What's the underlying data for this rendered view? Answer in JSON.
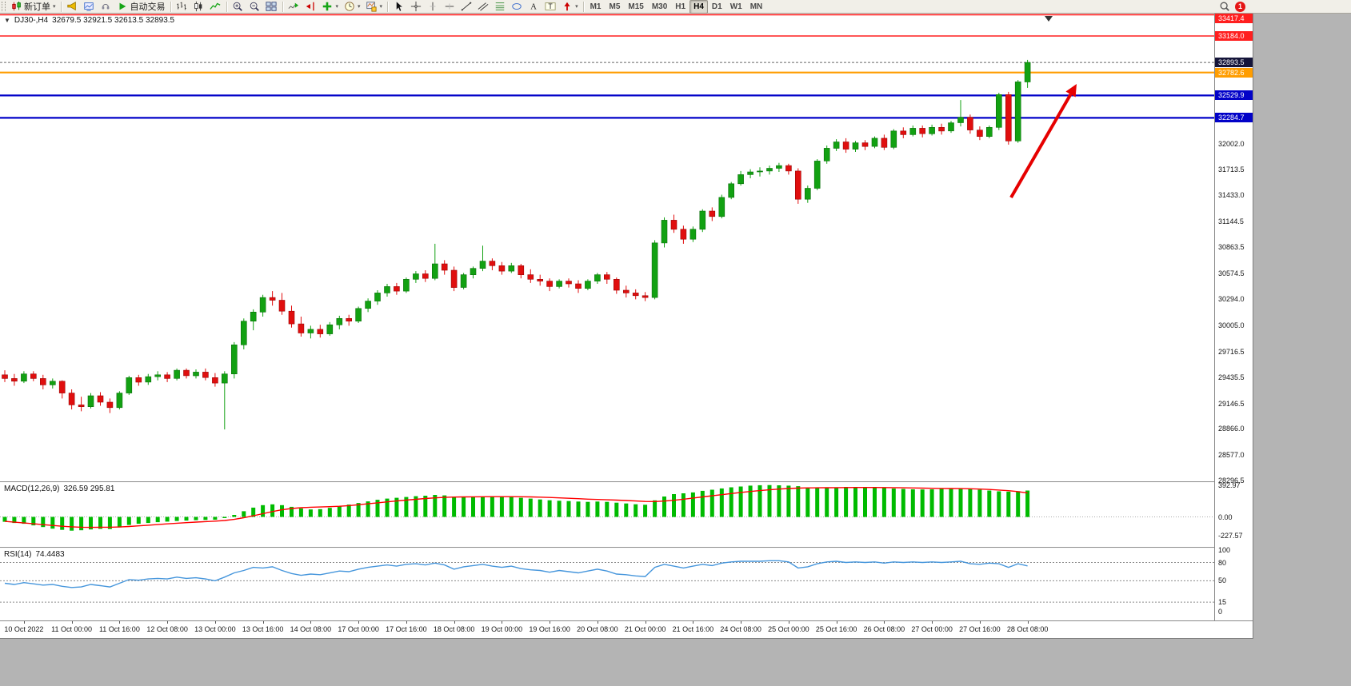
{
  "toolbar": {
    "groups": [
      {
        "name": "trade",
        "items": [
          {
            "name": "new-order-button",
            "icon": "new-order-icon",
            "label": "新订单",
            "dropdown": true
          }
        ]
      },
      {
        "name": "services",
        "items": [
          {
            "name": "alerts-button",
            "icon": "alert-horn-icon"
          },
          {
            "name": "news-button",
            "icon": "profile-chart-icon"
          },
          {
            "name": "community-button",
            "icon": "headset-icon"
          },
          {
            "name": "autotrading-button",
            "icon": "autotrading-play-icon",
            "label": "自动交易"
          }
        ]
      },
      {
        "name": "chart-types",
        "items": [
          {
            "name": "bar-chart-button",
            "icon": "bar-chart-icon"
          },
          {
            "name": "candlestick-button",
            "icon": "candlestick-icon"
          },
          {
            "name": "line-chart-button",
            "icon": "line-chart-icon"
          }
        ]
      },
      {
        "name": "zoom",
        "items": [
          {
            "name": "zoom-in-button",
            "icon": "zoom-in-icon"
          },
          {
            "name": "zoom-out-button",
            "icon": "zoom-out-icon"
          },
          {
            "name": "tile-windows-button",
            "icon": "tile-windows-icon"
          }
        ]
      },
      {
        "name": "chart-tools",
        "items": [
          {
            "name": "auto-scroll-button",
            "icon": "auto-scroll-icon"
          },
          {
            "name": "chart-shift-button",
            "icon": "chart-shift-icon"
          },
          {
            "name": "indicators-button",
            "icon": "indicators-icon",
            "dropdown": true
          },
          {
            "name": "periods-button",
            "icon": "periods-icon",
            "dropdown": true
          },
          {
            "name": "templates-button",
            "icon": "templates-icon",
            "dropdown": true
          }
        ]
      },
      {
        "name": "drawing",
        "items": [
          {
            "name": "cursor-button",
            "icon": "cursor-icon"
          },
          {
            "name": "crosshair-button",
            "icon": "crosshair-icon"
          },
          {
            "name": "vertical-line-button",
            "icon": "vertical-line-icon"
          },
          {
            "name": "horizontal-line-button",
            "icon": "horizontal-line-icon"
          },
          {
            "name": "trendline-button",
            "icon": "trendline-icon"
          },
          {
            "name": "channel-button",
            "icon": "channel-icon"
          },
          {
            "name": "fibonacci-button",
            "icon": "fibonacci-icon"
          },
          {
            "name": "shapes-button",
            "icon": "shapes-icon"
          },
          {
            "name": "text-button",
            "icon": "text-icon"
          },
          {
            "name": "text-label-button",
            "icon": "text-label-icon"
          },
          {
            "name": "arrows-button",
            "icon": "arrows-icon",
            "dropdown": true
          }
        ]
      }
    ],
    "timeframes": {
      "items": [
        "M1",
        "M5",
        "M15",
        "M30",
        "H1",
        "H4",
        "D1",
        "W1",
        "MN"
      ],
      "active": "H4"
    },
    "right": {
      "notification_count": "1"
    }
  },
  "chart": {
    "title": {
      "dropdown_glyph": "▼",
      "symbol_period": "DJ30-,H4",
      "ohlc": "32679.5 32921.5 32613.5 32893.5"
    }
  },
  "chart_data": {
    "type": "candlestick",
    "symbol": "DJ30-",
    "period": "H4",
    "current_ohlc": {
      "open": 32679.5,
      "high": 32921.5,
      "low": 32613.5,
      "close": 32893.5
    },
    "price_range": [
      28290,
      33430
    ],
    "colors": {
      "up": "#12a112",
      "up_edge": "#0a700a",
      "down": "#e00e0e",
      "down_edge": "#9c0606",
      "macd_hist": "#00bb00",
      "macd_signal": "#ff0000",
      "rsi_line": "#4696dc",
      "current_price_bg": "#15153a",
      "arrow": "#e60000"
    },
    "hlines": [
      {
        "price": 33417.4,
        "label": "33417.4",
        "color": "#ff1f1f",
        "width": 1.6
      },
      {
        "price": 33184.0,
        "label": "33184.0",
        "color": "#ff1f1f",
        "width": 1.6
      },
      {
        "price": 32782.6,
        "label": "32782.6",
        "color": "#ff9d00",
        "width": 2.2
      },
      {
        "price": 32529.9,
        "label": "32529.9",
        "color": "#0202c8",
        "width": 2.2
      },
      {
        "price": 32284.7,
        "label": "32284.7",
        "color": "#0202c8",
        "width": 2.2
      }
    ],
    "current_price": {
      "value": 32893.5,
      "label": "32893.5"
    },
    "price_ticks": [
      "32002.0",
      "31713.5",
      "31433.0",
      "31144.5",
      "30863.5",
      "30574.5",
      "30294.0",
      "30005.0",
      "29716.5",
      "29435.5",
      "29146.5",
      "28866.0",
      "28577.0",
      "28296.5"
    ],
    "time_labels": [
      "10 Oct 2022",
      "11 Oct 00:00",
      "11 Oct 16:00",
      "12 Oct 08:00",
      "13 Oct 00:00",
      "13 Oct 16:00",
      "14 Oct 08:00",
      "17 Oct 00:00",
      "17 Oct 16:00",
      "18 Oct 08:00",
      "19 Oct 00:00",
      "19 Oct 16:00",
      "20 Oct 08:00",
      "21 Oct 00:00",
      "21 Oct 16:00",
      "24 Oct 08:00",
      "25 Oct 00:00",
      "25 Oct 16:00",
      "26 Oct 08:00",
      "27 Oct 00:00",
      "27 Oct 16:00",
      "28 Oct 08:00"
    ],
    "candles": [
      [
        29460,
        29510,
        29380,
        29420
      ],
      [
        29420,
        29470,
        29340,
        29390
      ],
      [
        29390,
        29500,
        29370,
        29470
      ],
      [
        29470,
        29500,
        29390,
        29420
      ],
      [
        29420,
        29460,
        29300,
        29350
      ],
      [
        29350,
        29420,
        29310,
        29390
      ],
      [
        29390,
        29400,
        29200,
        29260
      ],
      [
        29260,
        29300,
        29080,
        29130
      ],
      [
        29130,
        29220,
        29060,
        29110
      ],
      [
        29110,
        29260,
        29090,
        29230
      ],
      [
        29230,
        29270,
        29120,
        29160
      ],
      [
        29160,
        29200,
        29040,
        29100
      ],
      [
        29100,
        29280,
        29080,
        29260
      ],
      [
        29260,
        29450,
        29240,
        29430
      ],
      [
        29430,
        29460,
        29340,
        29380
      ],
      [
        29380,
        29470,
        29350,
        29440
      ],
      [
        29440,
        29500,
        29400,
        29460
      ],
      [
        29460,
        29490,
        29380,
        29420
      ],
      [
        29420,
        29530,
        29400,
        29510
      ],
      [
        29510,
        29530,
        29420,
        29450
      ],
      [
        29450,
        29520,
        29420,
        29490
      ],
      [
        29490,
        29530,
        29400,
        29430
      ],
      [
        29430,
        29480,
        29330,
        29370
      ],
      [
        29370,
        29500,
        28860,
        29470
      ],
      [
        29470,
        29820,
        29420,
        29790
      ],
      [
        29790,
        30080,
        29740,
        30050
      ],
      [
        30050,
        30180,
        29950,
        30150
      ],
      [
        30150,
        30340,
        30100,
        30310
      ],
      [
        30310,
        30380,
        30220,
        30280
      ],
      [
        30280,
        30360,
        30120,
        30160
      ],
      [
        30160,
        30220,
        29980,
        30020
      ],
      [
        30020,
        30100,
        29880,
        29920
      ],
      [
        29920,
        30000,
        29860,
        29960
      ],
      [
        29960,
        30010,
        29870,
        29910
      ],
      [
        29910,
        30040,
        29890,
        30010
      ],
      [
        30010,
        30110,
        29960,
        30080
      ],
      [
        30080,
        30120,
        30000,
        30050
      ],
      [
        30050,
        30210,
        30030,
        30190
      ],
      [
        30190,
        30300,
        30150,
        30270
      ],
      [
        30270,
        30390,
        30230,
        30360
      ],
      [
        30360,
        30460,
        30320,
        30430
      ],
      [
        30430,
        30470,
        30340,
        30380
      ],
      [
        30380,
        30530,
        30360,
        30510
      ],
      [
        30510,
        30600,
        30470,
        30570
      ],
      [
        30570,
        30610,
        30480,
        30520
      ],
      [
        30520,
        30900,
        30500,
        30680
      ],
      [
        30680,
        30720,
        30560,
        30610
      ],
      [
        30610,
        30650,
        30380,
        30420
      ],
      [
        30420,
        30580,
        30400,
        30560
      ],
      [
        30560,
        30650,
        30520,
        30630
      ],
      [
        30630,
        30880,
        30600,
        30710
      ],
      [
        30710,
        30740,
        30610,
        30660
      ],
      [
        30660,
        30700,
        30560,
        30600
      ],
      [
        30600,
        30690,
        30580,
        30660
      ],
      [
        30660,
        30680,
        30520,
        30560
      ],
      [
        30560,
        30620,
        30470,
        30510
      ],
      [
        30510,
        30560,
        30440,
        30490
      ],
      [
        30490,
        30520,
        30380,
        30430
      ],
      [
        30430,
        30510,
        30410,
        30490
      ],
      [
        30490,
        30520,
        30420,
        30460
      ],
      [
        30460,
        30500,
        30360,
        30410
      ],
      [
        30410,
        30510,
        30390,
        30490
      ],
      [
        30490,
        30580,
        30460,
        30560
      ],
      [
        30560,
        30590,
        30460,
        30510
      ],
      [
        30510,
        30530,
        30350,
        30390
      ],
      [
        30390,
        30440,
        30310,
        30360
      ],
      [
        30360,
        30400,
        30290,
        30330
      ],
      [
        30330,
        30370,
        30270,
        30310
      ],
      [
        30310,
        30940,
        30290,
        30910
      ],
      [
        30910,
        31190,
        30860,
        31160
      ],
      [
        31160,
        31220,
        31020,
        31060
      ],
      [
        31060,
        31100,
        30900,
        30950
      ],
      [
        30950,
        31090,
        30920,
        31060
      ],
      [
        31060,
        31280,
        31030,
        31260
      ],
      [
        31260,
        31300,
        31150,
        31200
      ],
      [
        31200,
        31440,
        31180,
        31410
      ],
      [
        31410,
        31580,
        31390,
        31560
      ],
      [
        31560,
        31700,
        31540,
        31660
      ],
      [
        31660,
        31720,
        31620,
        31690
      ],
      [
        31690,
        31740,
        31640,
        31700
      ],
      [
        31700,
        31760,
        31660,
        31730
      ],
      [
        31730,
        31790,
        31690,
        31760
      ],
      [
        31760,
        31780,
        31660,
        31700
      ],
      [
        31700,
        31730,
        31340,
        31390
      ],
      [
        31390,
        31540,
        31350,
        31510
      ],
      [
        31510,
        31830,
        31490,
        31810
      ],
      [
        31810,
        31980,
        31780,
        31950
      ],
      [
        31950,
        32050,
        31920,
        32020
      ],
      [
        32020,
        32060,
        31900,
        31940
      ],
      [
        31940,
        32030,
        31910,
        32010
      ],
      [
        32010,
        32040,
        31930,
        31970
      ],
      [
        31970,
        32080,
        31950,
        32060
      ],
      [
        32060,
        32100,
        31930,
        31960
      ],
      [
        31960,
        32160,
        31940,
        32140
      ],
      [
        32140,
        32180,
        32060,
        32100
      ],
      [
        32100,
        32200,
        32080,
        32170
      ],
      [
        32170,
        32200,
        32070,
        32110
      ],
      [
        32110,
        32210,
        32090,
        32180
      ],
      [
        32180,
        32220,
        32100,
        32140
      ],
      [
        32140,
        32250,
        32120,
        32230
      ],
      [
        32230,
        32480,
        32190,
        32290
      ],
      [
        32290,
        32320,
        32110,
        32150
      ],
      [
        32150,
        32190,
        32040,
        32080
      ],
      [
        32080,
        32200,
        32060,
        32180
      ],
      [
        32180,
        32560,
        32150,
        32540
      ],
      [
        32540,
        32570,
        31990,
        32030
      ],
      [
        32030,
        32700,
        32010,
        32679.5
      ],
      [
        32679.5,
        32921.5,
        32613.5,
        32893.5
      ]
    ],
    "macd": {
      "label": "MACD(12,26,9)",
      "values_text": "326.59 295.81",
      "main_value": 326.59,
      "signal_value": 295.81,
      "scale": [
        "392.97",
        "0.00",
        "-227.57"
      ],
      "range": [
        420,
        -370
      ],
      "histogram": [
        -60,
        -75,
        -85,
        -105,
        -125,
        -145,
        -160,
        -170,
        -165,
        -155,
        -148,
        -150,
        -130,
        -100,
        -85,
        -75,
        -65,
        -58,
        -50,
        -45,
        -40,
        -38,
        -35,
        -15,
        25,
        70,
        115,
        145,
        155,
        145,
        125,
        105,
        92,
        96,
        112,
        132,
        152,
        172,
        192,
        212,
        226,
        236,
        246,
        256,
        262,
        272,
        266,
        250,
        242,
        246,
        252,
        256,
        250,
        246,
        236,
        226,
        216,
        206,
        200,
        196,
        190,
        186,
        190,
        186,
        176,
        166,
        156,
        150,
        205,
        252,
        282,
        292,
        302,
        322,
        336,
        352,
        366,
        376,
        386,
        391,
        393,
        390,
        386,
        380,
        362,
        356,
        362,
        366,
        371,
        369,
        366,
        361,
        356,
        351,
        346,
        341,
        339,
        341,
        346,
        351,
        356,
        346,
        336,
        326,
        316,
        312,
        318,
        326.59
      ],
      "signal": [
        -55,
        -65,
        -75,
        -85,
        -95,
        -105,
        -115,
        -122,
        -127,
        -129,
        -128,
        -127,
        -124,
        -118,
        -110,
        -102,
        -94,
        -86,
        -78,
        -71,
        -64,
        -58,
        -52,
        -44,
        -30,
        -10,
        14,
        40,
        66,
        88,
        104,
        114,
        120,
        123,
        127,
        132,
        140,
        150,
        162,
        174,
        186,
        197,
        208,
        218,
        227,
        235,
        241,
        245,
        247,
        248,
        249,
        250,
        250,
        250,
        249,
        247,
        244,
        240,
        235,
        230,
        225,
        220,
        216,
        212,
        208,
        203,
        197,
        191,
        190,
        196,
        206,
        219,
        233,
        247,
        261,
        275,
        289,
        302,
        314,
        325,
        335,
        344,
        351,
        356,
        359,
        360,
        361,
        362,
        363,
        364,
        364,
        364,
        363,
        362,
        360,
        358,
        356,
        354,
        352,
        351,
        350,
        348,
        344,
        339,
        332,
        324,
        312,
        295.81
      ]
    },
    "rsi": {
      "label": "RSI(14)",
      "value_text": "74.4483",
      "last_value": 74.4483,
      "scale": [
        "100",
        "80",
        "50",
        "15",
        "0"
      ],
      "levels_dashed": [
        80,
        50,
        15
      ],
      "range": [
        103,
        -15
      ],
      "series": [
        46,
        44,
        47,
        45,
        43,
        44,
        41,
        39,
        40,
        44,
        42,
        40,
        46,
        52,
        51,
        53,
        54,
        53,
        56,
        54,
        55,
        53,
        50,
        56,
        63,
        67,
        72,
        71,
        73,
        67,
        62,
        59,
        61,
        60,
        63,
        66,
        65,
        69,
        72,
        74,
        76,
        74,
        77,
        78,
        76,
        79,
        76,
        69,
        73,
        75,
        77,
        74,
        72,
        74,
        70,
        68,
        67,
        64,
        67,
        65,
        63,
        66,
        69,
        66,
        61,
        60,
        58,
        57,
        72,
        77,
        74,
        71,
        74,
        77,
        75,
        79,
        81,
        82,
        82,
        82,
        83,
        83,
        81,
        71,
        73,
        78,
        81,
        82,
        80,
        81,
        80,
        81,
        79,
        81,
        80,
        81,
        80,
        81,
        80,
        81,
        82,
        78,
        77,
        79,
        78,
        72,
        78,
        74.4483
      ]
    },
    "annotation_arrow": {
      "from": [
        1264,
        230
      ],
      "to": [
        1346,
        88
      ],
      "width": 4
    }
  }
}
